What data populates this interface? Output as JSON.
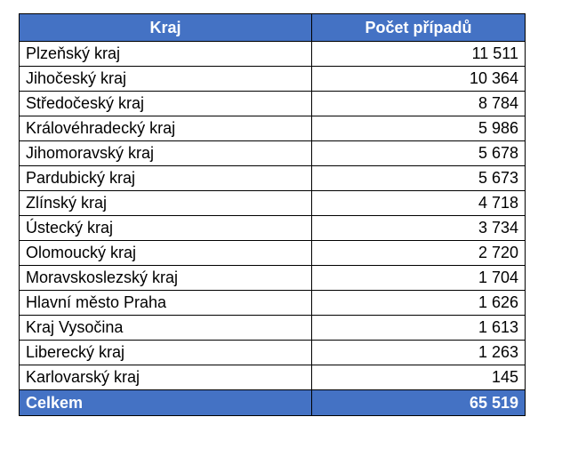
{
  "table": {
    "headers": [
      "Kraj",
      "Počet případů"
    ],
    "rows": [
      {
        "region": "Plzeňský kraj",
        "count": "11 511"
      },
      {
        "region": "Jihočeský kraj",
        "count": "10 364"
      },
      {
        "region": "Středočeský kraj",
        "count": "8 784"
      },
      {
        "region": "Královéhradecký kraj",
        "count": "5 986"
      },
      {
        "region": "Jihomoravský kraj",
        "count": "5 678"
      },
      {
        "region": "Pardubický kraj",
        "count": "5 673"
      },
      {
        "region": "Zlínský kraj",
        "count": "4 718"
      },
      {
        "region": "Ústecký kraj",
        "count": "3 734"
      },
      {
        "region": "Olomoucký kraj",
        "count": "2 720"
      },
      {
        "region": "Moravskoslezský kraj",
        "count": "1 704"
      },
      {
        "region": "Hlavní město Praha",
        "count": "1 626"
      },
      {
        "region": "Kraj Vysočina",
        "count": "1 613"
      },
      {
        "region": "Liberecký kraj",
        "count": "1 263"
      },
      {
        "region": "Karlovarský kraj",
        "count": "145"
      }
    ],
    "total": {
      "label": "Celkem",
      "count": "65 519"
    }
  },
  "colors": {
    "header_bg": "#4472c4",
    "header_text": "#ffffff",
    "border": "#000000"
  }
}
